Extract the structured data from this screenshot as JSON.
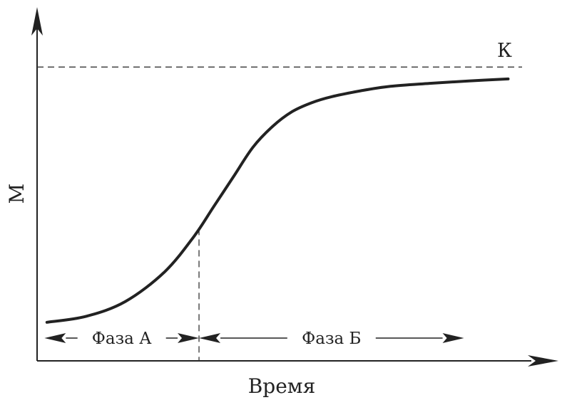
{
  "chart_data": {
    "type": "line",
    "title": "",
    "xlabel": "Время",
    "ylabel": "М",
    "asymptote_label": "К",
    "xlim": [
      0,
      1
    ],
    "ylim": [
      0,
      1
    ],
    "grid": false,
    "series": [
      {
        "x": [
          0.02,
          0.1,
          0.18,
          0.26,
          0.32,
          0.36,
          0.4,
          0.44,
          0.48,
          0.52,
          0.56,
          0.6,
          0.66,
          0.72,
          0.8,
          0.88,
          0.96
        ],
        "values": [
          0.13,
          0.15,
          0.2,
          0.3,
          0.42,
          0.52,
          0.62,
          0.72,
          0.79,
          0.84,
          0.87,
          0.89,
          0.91,
          0.925,
          0.935,
          0.943,
          0.95
        ]
      }
    ],
    "asymptote": {
      "y": 0.99
    },
    "inflection": {
      "x": 0.33
    },
    "phases": [
      {
        "label": "Фаза А",
        "start": 0.015,
        "end": 0.33
      },
      {
        "label": "Фаза Б",
        "start": 0.33,
        "end": 0.87
      }
    ]
  }
}
